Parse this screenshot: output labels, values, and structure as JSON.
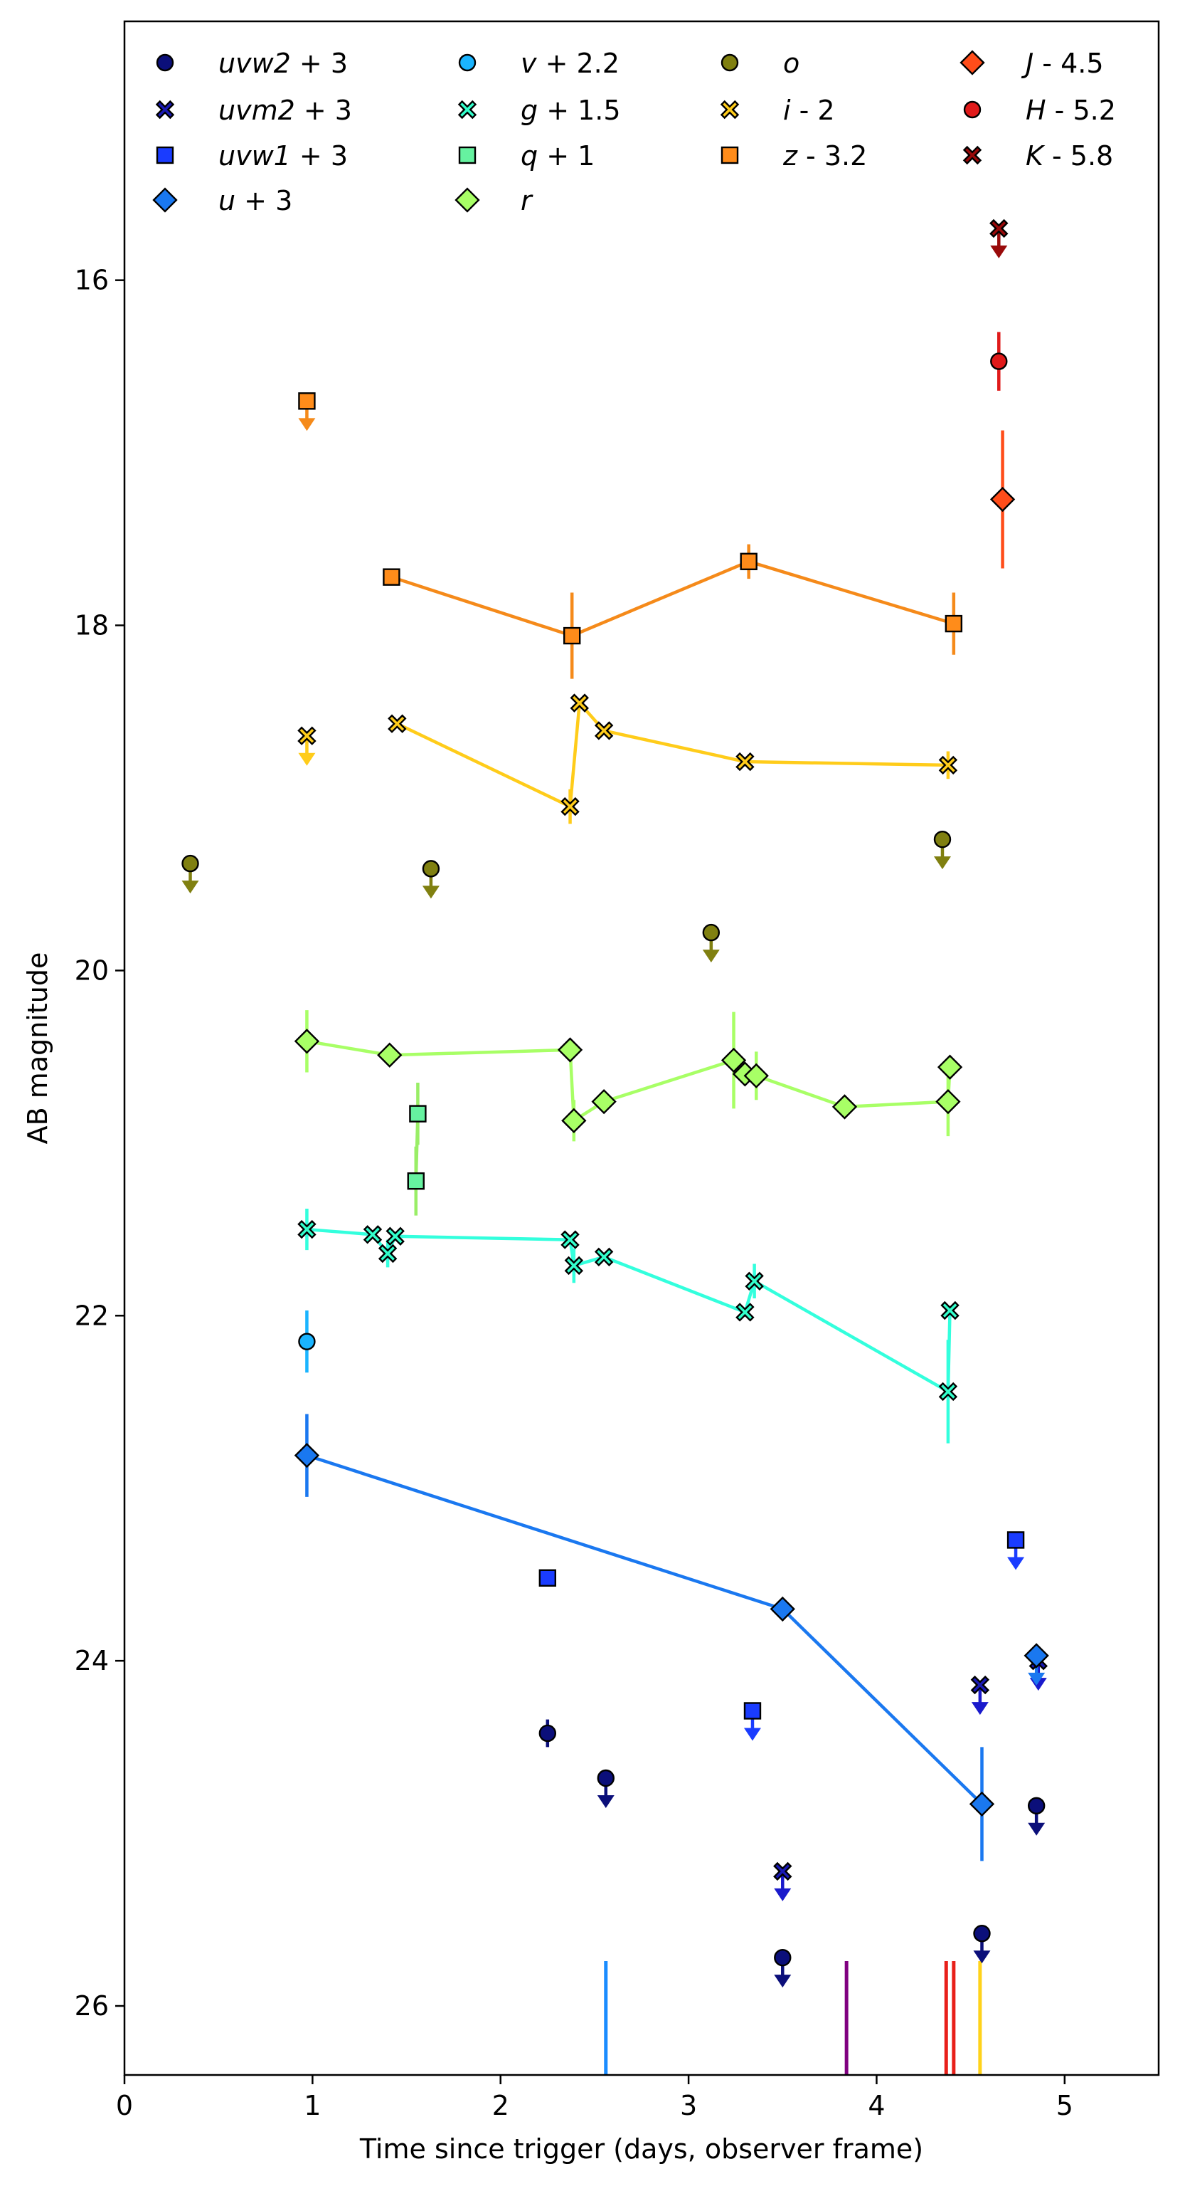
{
  "chart_data": {
    "type": "scatter",
    "title": "",
    "xlabel": "Time since trigger (days, observer frame)",
    "ylabel": "AB magnitude",
    "xlim": [
      0,
      5.5
    ],
    "ylim": [
      26.4,
      14.5
    ],
    "y_inverted": true,
    "xticks": [
      0,
      1,
      2,
      3,
      4,
      5
    ],
    "xtick_labels": [
      "0",
      "1",
      "2",
      "3",
      "4",
      "5"
    ],
    "yticks": [
      16,
      18,
      20,
      22,
      24,
      26
    ],
    "ytick_labels": [
      "16",
      "18",
      "20",
      "22",
      "24",
      "26"
    ],
    "legend_position": "top",
    "vertical_markers": [
      {
        "x": 2.56,
        "color": "#1a8cff"
      },
      {
        "x": 3.84,
        "color": "#800080"
      },
      {
        "x": 4.37,
        "color": "#e8201a"
      },
      {
        "x": 4.41,
        "color": "#e8201a"
      },
      {
        "x": 4.55,
        "color": "#ffd21a"
      }
    ],
    "series": [
      {
        "name": "uvw2 + 3",
        "band": "uvw2",
        "offset": "+ 3",
        "marker": "circle",
        "color": "#0b0f7a",
        "line": false,
        "line_color": "#0b0f7a",
        "points": [
          {
            "x": 2.25,
            "y": 24.42,
            "err": 0.08
          },
          {
            "x": 2.56,
            "y": 24.68,
            "upper_limit": true
          },
          {
            "x": 3.5,
            "y": 25.72,
            "upper_limit": true
          },
          {
            "x": 4.56,
            "y": 25.58,
            "upper_limit": true
          },
          {
            "x": 4.85,
            "y": 24.84,
            "upper_limit": true
          }
        ]
      },
      {
        "name": "uvm2 + 3",
        "band": "uvm2",
        "offset": "+ 3",
        "marker": "x",
        "color": "#1a1ab4",
        "line": false,
        "line_color": "#1a1acc",
        "points": [
          {
            "x": 3.5,
            "y": 25.22,
            "upper_limit": true
          },
          {
            "x": 4.55,
            "y": 24.14,
            "upper_limit": true
          },
          {
            "x": 4.86,
            "y": 24.0,
            "upper_limit": true
          }
        ]
      },
      {
        "name": "uvw1 + 3",
        "band": "uvw1",
        "offset": "+ 3",
        "marker": "square",
        "color": "#1a3cff",
        "line": false,
        "line_color": "#1a3cff",
        "points": [
          {
            "x": 2.25,
            "y": 23.52
          },
          {
            "x": 3.34,
            "y": 24.29,
            "upper_limit": true
          },
          {
            "x": 4.74,
            "y": 23.3,
            "upper_limit": true
          }
        ]
      },
      {
        "name": "u + 3",
        "band": "u",
        "offset": "+ 3",
        "marker": "diamond",
        "color": "#1a78f0",
        "line": true,
        "line_color": "#1a78f0",
        "points": [
          {
            "x": 0.97,
            "y": 22.81,
            "err": 0.24
          },
          {
            "x": 3.5,
            "y": 23.7
          },
          {
            "x": 4.56,
            "y": 24.83,
            "err": 0.33
          },
          {
            "x": 4.85,
            "y": 23.97,
            "upper_limit": true
          }
        ]
      },
      {
        "name": "v + 2.2",
        "band": "v",
        "offset": "+ 2.2",
        "marker": "circle",
        "color": "#1ab4ff",
        "line": false,
        "line_color": "#1ab4ff",
        "points": [
          {
            "x": 0.97,
            "y": 22.15,
            "err": 0.18
          }
        ]
      },
      {
        "name": "g + 1.5",
        "band": "g",
        "offset": "+ 1.5",
        "marker": "x",
        "color": "#33ffcc",
        "line": true,
        "line_color": "#33ffdd",
        "points": [
          {
            "x": 0.97,
            "y": 21.5,
            "err": 0.12
          },
          {
            "x": 1.32,
            "y": 21.53
          },
          {
            "x": 1.4,
            "y": 21.64,
            "err": 0.08
          },
          {
            "x": 1.44,
            "y": 21.54
          },
          {
            "x": 2.37,
            "y": 21.56
          },
          {
            "x": 2.39,
            "y": 21.71,
            "err": 0.1
          },
          {
            "x": 2.55,
            "y": 21.66
          },
          {
            "x": 3.3,
            "y": 21.98
          },
          {
            "x": 3.35,
            "y": 21.8,
            "err": 0.1
          },
          {
            "x": 4.38,
            "y": 22.44,
            "err": 0.3
          },
          {
            "x": 4.39,
            "y": 21.97
          }
        ]
      },
      {
        "name": "q + 1",
        "band": "q",
        "offset": "+ 1",
        "marker": "square",
        "color": "#66f2a0",
        "line": true,
        "line_color": "#99ee66",
        "points": [
          {
            "x": 1.56,
            "y": 20.83,
            "err": 0.18
          },
          {
            "x": 1.55,
            "y": 21.22,
            "err": 0.2
          }
        ]
      },
      {
        "name": "r",
        "band": "r",
        "offset": "",
        "marker": "diamond",
        "color": "#a8ff66",
        "line": true,
        "line_color": "#a8ff66",
        "points": [
          {
            "x": 0.97,
            "y": 20.41,
            "err": 0.18
          },
          {
            "x": 1.41,
            "y": 20.49
          },
          {
            "x": 2.37,
            "y": 20.46
          },
          {
            "x": 2.39,
            "y": 20.87,
            "err": 0.12
          },
          {
            "x": 2.55,
            "y": 20.76
          },
          {
            "x": 3.24,
            "y": 20.52,
            "err": 0.28
          },
          {
            "x": 3.3,
            "y": 20.6
          },
          {
            "x": 3.36,
            "y": 20.61,
            "err": 0.14
          },
          {
            "x": 3.83,
            "y": 20.79
          },
          {
            "x": 4.38,
            "y": 20.76,
            "err": 0.2
          },
          {
            "x": 4.39,
            "y": 20.56
          }
        ]
      },
      {
        "name": "o",
        "band": "o",
        "offset": "",
        "marker": "circle",
        "color": "#808010",
        "line": false,
        "line_color": "#808010",
        "points": [
          {
            "x": 0.35,
            "y": 19.38,
            "upper_limit": true
          },
          {
            "x": 1.63,
            "y": 19.41,
            "upper_limit": true
          },
          {
            "x": 3.12,
            "y": 19.78,
            "upper_limit": true
          },
          {
            "x": 4.35,
            "y": 19.24,
            "upper_limit": true
          }
        ]
      },
      {
        "name": "i - 2",
        "band": "i",
        "offset": "- 2",
        "marker": "x",
        "color": "#ffcc1a",
        "line": true,
        "line_color": "#ffcc1a",
        "points": [
          {
            "x": 0.97,
            "y": 18.64,
            "upper_limit": true
          },
          {
            "x": 1.45,
            "y": 18.57
          },
          {
            "x": 2.37,
            "y": 19.05,
            "err": 0.1
          },
          {
            "x": 2.42,
            "y": 18.45
          },
          {
            "x": 2.55,
            "y": 18.61
          },
          {
            "x": 3.3,
            "y": 18.79
          },
          {
            "x": 4.38,
            "y": 18.81,
            "err": 0.08
          }
        ]
      },
      {
        "name": "z - 3.2",
        "band": "z",
        "offset": "- 3.2",
        "marker": "square",
        "color": "#ff8c1a",
        "line": true,
        "line_color": "#f58a1a",
        "points": [
          {
            "x": 0.97,
            "y": 16.7,
            "upper_limit": true
          },
          {
            "x": 1.42,
            "y": 17.72
          },
          {
            "x": 2.38,
            "y": 18.06,
            "err": 0.25
          },
          {
            "x": 3.32,
            "y": 17.63,
            "err": 0.1
          },
          {
            "x": 4.41,
            "y": 17.99,
            "err": 0.18
          }
        ]
      },
      {
        "name": "J - 4.5",
        "band": "J",
        "offset": "- 4.5",
        "marker": "diamond",
        "color": "#ff4d1a",
        "line": false,
        "line_color": "#ff4d1a",
        "points": [
          {
            "x": 4.67,
            "y": 17.27,
            "err": 0.4
          }
        ]
      },
      {
        "name": "H - 5.2",
        "band": "H",
        "offset": "- 5.2",
        "marker": "circle",
        "color": "#e01a1a",
        "line": false,
        "line_color": "#e01a1a",
        "points": [
          {
            "x": 4.65,
            "y": 16.47,
            "err": 0.17
          }
        ]
      },
      {
        "name": "K - 5.8",
        "band": "K",
        "offset": "- 5.8",
        "marker": "x",
        "color": "#990a0a",
        "line": false,
        "line_color": "#990a0a",
        "points": [
          {
            "x": 4.65,
            "y": 15.7,
            "upper_limit": true
          }
        ]
      }
    ]
  }
}
